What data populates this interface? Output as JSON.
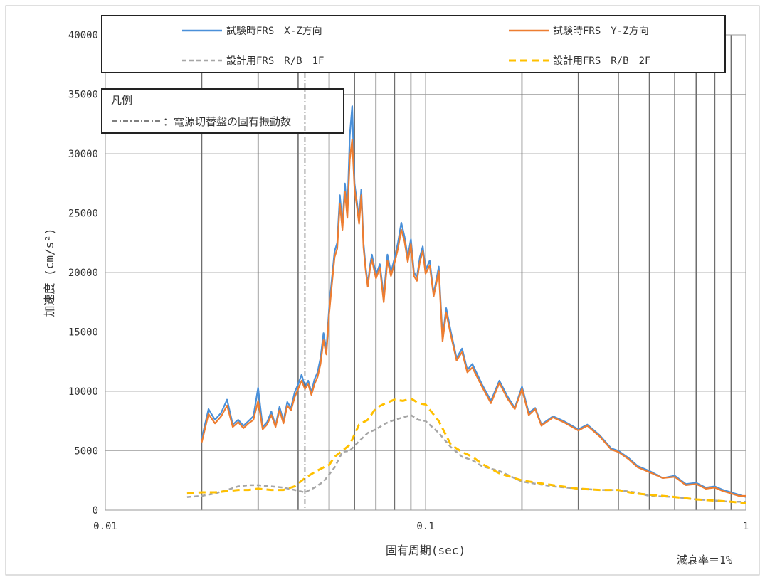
{
  "chart_data": {
    "type": "line",
    "x_scale": "log",
    "xlim": [
      0.01,
      1
    ],
    "ylim": [
      0,
      40000
    ],
    "grid": true,
    "xlabel": "固有周期(sec)",
    "ylabel": "加速度 (cm/s²)",
    "x_tick_labels": [
      "0.01",
      "0.1",
      "1"
    ],
    "y_ticks": [
      0,
      5000,
      10000,
      15000,
      20000,
      25000,
      30000,
      35000,
      40000
    ],
    "y_tick_labels": [
      "0",
      "5000",
      "10000",
      "15000",
      "20000",
      "25000",
      "30000",
      "35000",
      "40000"
    ],
    "legend_position": "top",
    "annotation": "減衰率＝1%",
    "inset_legend": {
      "title": "凡例",
      "entry": "：電源切替盤の固有振動数",
      "marker_x": 0.042
    },
    "series": [
      {
        "name": "試験時FRS　X-Z方向",
        "color": "#4a90d9",
        "style": "solid",
        "x": [
          0.02,
          0.021,
          0.022,
          0.023,
          0.024,
          0.025,
          0.026,
          0.027,
          0.028,
          0.029,
          0.03,
          0.031,
          0.032,
          0.033,
          0.034,
          0.035,
          0.036,
          0.037,
          0.038,
          0.039,
          0.04,
          0.041,
          0.042,
          0.043,
          0.044,
          0.045,
          0.046,
          0.047,
          0.048,
          0.049,
          0.05,
          0.051,
          0.052,
          0.053,
          0.054,
          0.055,
          0.056,
          0.057,
          0.058,
          0.059,
          0.06,
          0.061,
          0.062,
          0.063,
          0.064,
          0.065,
          0.066,
          0.067,
          0.068,
          0.07,
          0.072,
          0.074,
          0.076,
          0.078,
          0.08,
          0.082,
          0.084,
          0.086,
          0.088,
          0.09,
          0.092,
          0.094,
          0.096,
          0.098,
          0.1,
          0.103,
          0.106,
          0.11,
          0.113,
          0.116,
          0.12,
          0.125,
          0.13,
          0.135,
          0.14,
          0.15,
          0.16,
          0.17,
          0.18,
          0.19,
          0.2,
          0.21,
          0.22,
          0.23,
          0.25,
          0.27,
          0.3,
          0.32,
          0.35,
          0.38,
          0.4,
          0.43,
          0.46,
          0.5,
          0.55,
          0.6,
          0.65,
          0.7,
          0.75,
          0.8,
          0.85,
          0.9,
          0.95,
          1.0
        ],
        "y": [
          6000,
          8500,
          7600,
          8200,
          9300,
          7200,
          7600,
          7100,
          7500,
          7900,
          10300,
          7000,
          7400,
          8300,
          7100,
          8700,
          7500,
          9100,
          8600,
          9900,
          10600,
          11400,
          10400,
          10900,
          9900,
          11000,
          11600,
          12800,
          14900,
          13500,
          17000,
          19500,
          21800,
          22500,
          26500,
          24000,
          27500,
          25000,
          31500,
          34000,
          27500,
          26000,
          24500,
          27000,
          22500,
          20500,
          19000,
          20500,
          21500,
          19800,
          20700,
          18000,
          21500,
          20000,
          21200,
          22500,
          24200,
          23000,
          21300,
          22800,
          20000,
          19600,
          21300,
          22200,
          20200,
          21000,
          18200,
          20500,
          14500,
          17000,
          15000,
          12800,
          13600,
          11800,
          12300,
          10600,
          9200,
          10900,
          9600,
          8600,
          10400,
          8200,
          8600,
          7200,
          7900,
          7500,
          6800,
          7200,
          6300,
          5200,
          5000,
          4400,
          3700,
          3300,
          2700,
          2900,
          2200,
          2300,
          1900,
          2000,
          1700,
          1500,
          1300,
          1100
        ]
      },
      {
        "name": "試験時FRS　Y-Z方向",
        "color": "#ed7d31",
        "style": "solid",
        "x": [
          0.02,
          0.021,
          0.022,
          0.023,
          0.024,
          0.025,
          0.026,
          0.027,
          0.028,
          0.029,
          0.03,
          0.031,
          0.032,
          0.033,
          0.034,
          0.035,
          0.036,
          0.037,
          0.038,
          0.039,
          0.04,
          0.041,
          0.042,
          0.043,
          0.044,
          0.045,
          0.046,
          0.047,
          0.048,
          0.049,
          0.05,
          0.051,
          0.052,
          0.053,
          0.054,
          0.055,
          0.056,
          0.057,
          0.058,
          0.059,
          0.06,
          0.061,
          0.062,
          0.063,
          0.064,
          0.065,
          0.066,
          0.067,
          0.068,
          0.07,
          0.072,
          0.074,
          0.076,
          0.078,
          0.08,
          0.082,
          0.084,
          0.086,
          0.088,
          0.09,
          0.092,
          0.094,
          0.096,
          0.098,
          0.1,
          0.103,
          0.106,
          0.11,
          0.113,
          0.116,
          0.12,
          0.125,
          0.13,
          0.135,
          0.14,
          0.15,
          0.16,
          0.17,
          0.18,
          0.19,
          0.2,
          0.21,
          0.22,
          0.23,
          0.25,
          0.27,
          0.3,
          0.32,
          0.35,
          0.38,
          0.4,
          0.43,
          0.46,
          0.5,
          0.55,
          0.6,
          0.65,
          0.7,
          0.75,
          0.8,
          0.85,
          0.9,
          0.95,
          1.0
        ],
        "y": [
          5700,
          8100,
          7300,
          7900,
          8800,
          7000,
          7400,
          6900,
          7300,
          7600,
          9200,
          6800,
          7200,
          8000,
          7000,
          8400,
          7300,
          8800,
          8400,
          9500,
          10200,
          10900,
          10200,
          10600,
          9700,
          10600,
          11200,
          12300,
          14300,
          13100,
          16500,
          19000,
          21300,
          22000,
          25800,
          23600,
          26800,
          24600,
          29500,
          31200,
          27000,
          25600,
          24100,
          26500,
          22100,
          20200,
          18800,
          20200,
          21100,
          19500,
          20400,
          17500,
          21000,
          19700,
          20800,
          22000,
          23600,
          22600,
          20900,
          22400,
          19700,
          19300,
          20900,
          21800,
          19900,
          20600,
          18000,
          20100,
          14200,
          16600,
          14700,
          12600,
          13300,
          11600,
          12000,
          10400,
          9000,
          10700,
          9400,
          8500,
          10200,
          8000,
          8500,
          7100,
          7800,
          7400,
          6700,
          7100,
          6200,
          5100,
          4900,
          4300,
          3600,
          3200,
          2700,
          2800,
          2100,
          2200,
          1800,
          1900,
          1600,
          1400,
          1200,
          1200
        ]
      },
      {
        "name": "設計用FRS　R/B　1F",
        "color": "#a6a6a6",
        "style": "dashed",
        "x": [
          0.018,
          0.02,
          0.022,
          0.024,
          0.026,
          0.028,
          0.03,
          0.033,
          0.036,
          0.039,
          0.042,
          0.045,
          0.048,
          0.05,
          0.052,
          0.055,
          0.058,
          0.062,
          0.066,
          0.07,
          0.075,
          0.08,
          0.085,
          0.09,
          0.095,
          0.1,
          0.11,
          0.12,
          0.13,
          0.14,
          0.15,
          0.17,
          0.2,
          0.25,
          0.3,
          0.35,
          0.4,
          0.45,
          0.5,
          0.6,
          0.7,
          0.8,
          0.9,
          1.0
        ],
        "y": [
          1100,
          1200,
          1400,
          1700,
          2000,
          2100,
          2100,
          2000,
          1900,
          1700,
          1500,
          1900,
          2400,
          3000,
          3600,
          4900,
          5000,
          5800,
          6500,
          6800,
          7300,
          7600,
          7800,
          8000,
          7600,
          7500,
          6500,
          5300,
          4500,
          4200,
          3700,
          3300,
          2400,
          2000,
          1800,
          1700,
          1700,
          1500,
          1200,
          1100,
          900,
          800,
          700,
          700
        ]
      },
      {
        "name": "設計用FRS　R/B　2F",
        "color": "#ffc000",
        "style": "dashed",
        "x": [
          0.018,
          0.02,
          0.022,
          0.024,
          0.026,
          0.028,
          0.03,
          0.033,
          0.036,
          0.039,
          0.042,
          0.045,
          0.048,
          0.05,
          0.052,
          0.055,
          0.058,
          0.062,
          0.066,
          0.07,
          0.075,
          0.08,
          0.085,
          0.09,
          0.095,
          0.1,
          0.11,
          0.12,
          0.13,
          0.14,
          0.15,
          0.17,
          0.2,
          0.25,
          0.3,
          0.35,
          0.4,
          0.45,
          0.5,
          0.6,
          0.7,
          0.8,
          0.9,
          1.0
        ],
        "y": [
          1400,
          1500,
          1500,
          1600,
          1700,
          1700,
          1800,
          1700,
          1700,
          2000,
          2700,
          3200,
          3600,
          3800,
          4500,
          5000,
          5500,
          7200,
          7600,
          8600,
          9000,
          9300,
          9200,
          9400,
          9000,
          8900,
          7500,
          5500,
          4900,
          4500,
          3900,
          3100,
          2500,
          2100,
          1800,
          1700,
          1700,
          1400,
          1300,
          1100,
          900,
          800,
          700,
          600
        ]
      }
    ]
  }
}
